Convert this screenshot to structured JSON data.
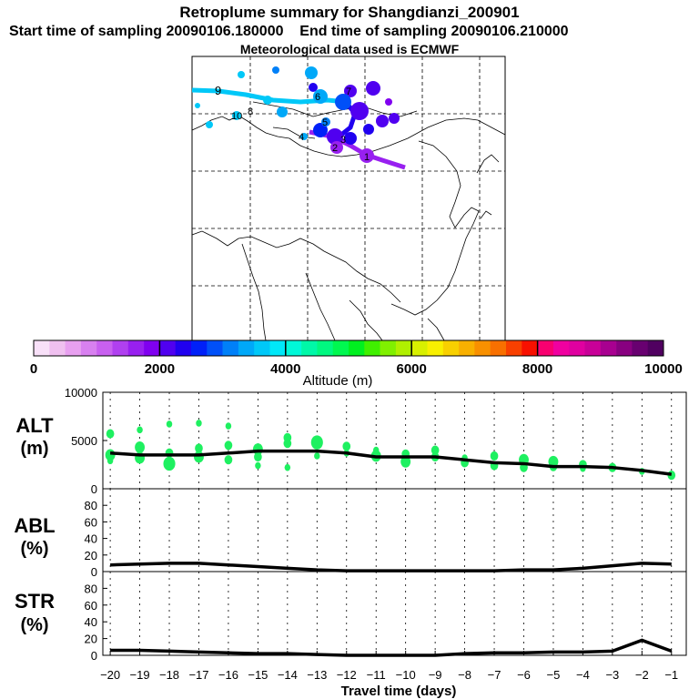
{
  "header": {
    "title": "Retroplume summary for Shangdianzi_200901",
    "start_label": "Start time of sampling 20090106.180000",
    "end_label": "End time of sampling 20090106.210000",
    "met_label": "Meteorological data used is ECMWF"
  },
  "colorbar": {
    "label": "Altitude (m)",
    "tick_labels": [
      "0",
      "2000",
      "4000",
      "6000",
      "8000",
      "10000"
    ],
    "min": 0,
    "max": 10000,
    "colors": [
      "#f8e0f8",
      "#f0c0f0",
      "#e8a0f0",
      "#d880f0",
      "#c860f0",
      "#b040f0",
      "#9820f0",
      "#8000f0",
      "#5000f0",
      "#2000f0",
      "#0020f8",
      "#0050f8",
      "#0080f8",
      "#00a8f8",
      "#00c8f8",
      "#00e8f8",
      "#00f8d8",
      "#00f8a8",
      "#00f880",
      "#00f850",
      "#00f020",
      "#40f000",
      "#80f000",
      "#b0f000",
      "#d8f000",
      "#f8f000",
      "#f8d000",
      "#f8b000",
      "#f89000",
      "#f87000",
      "#f84000",
      "#f81000",
      "#f80070",
      "#f000a0",
      "#e000a0",
      "#c80098",
      "#a80090",
      "#880080",
      "#680070",
      "#500060"
    ],
    "class_bounds": [
      2000,
      4000,
      6000,
      8000
    ]
  },
  "map": {
    "plume_points": [
      {
        "label": "1",
        "altitude": 1800
      },
      {
        "label": "2",
        "altitude": 2000
      },
      {
        "label": "3",
        "altitude": 1800
      },
      {
        "label": "4",
        "altitude": 2200
      },
      {
        "label": "5",
        "altitude": 2400
      },
      {
        "label": "6",
        "altitude": 2600
      },
      {
        "label": "7",
        "altitude": 3000
      },
      {
        "label": "8",
        "altitude": 3200
      },
      {
        "label": "9",
        "altitude": 3600
      },
      {
        "label": "10",
        "altitude": 3400
      }
    ]
  },
  "panels": {
    "alt_label": "ALT",
    "alt_unit": "(m)",
    "abl_label": "ABL",
    "abl_unit": "(%)",
    "str_label": "STR",
    "str_unit": "(%)",
    "xlabel": "Travel time (days)"
  },
  "chart_data": [
    {
      "type": "line",
      "name": "ALT",
      "x": [
        -20,
        -19,
        -18,
        -17,
        -16,
        -15,
        -14,
        -13,
        -12,
        -11,
        -10,
        -9,
        -8,
        -7,
        -6,
        -5,
        -4,
        -3,
        -2,
        -1
      ],
      "series": [
        {
          "name": "median altitude",
          "values": [
            3700,
            3500,
            3500,
            3500,
            3700,
            3900,
            3900,
            3900,
            3700,
            3300,
            3300,
            3300,
            3000,
            2700,
            2600,
            2300,
            2300,
            2200,
            1900,
            1500
          ]
        }
      ],
      "scatter": {
        "x": [
          -20,
          -20,
          -20,
          -19,
          -19,
          -19,
          -18,
          -18,
          -18,
          -17,
          -17,
          -17,
          -16,
          -16,
          -16,
          -15,
          -15,
          -15,
          -14,
          -14,
          -14,
          -13,
          -13,
          -12,
          -12,
          -11,
          -11,
          -10,
          -10,
          -9,
          -9,
          -8,
          -8,
          -7,
          -7,
          -6,
          -6,
          -5,
          -5,
          -4,
          -4,
          -3,
          -2,
          -1
        ],
        "y": [
          3500,
          5700,
          2900,
          4300,
          3200,
          6100,
          3700,
          2600,
          6700,
          3300,
          6800,
          4200,
          3000,
          4500,
          6500,
          4100,
          3300,
          2400,
          4700,
          5300,
          2200,
          4800,
          3400,
          4400,
          3700,
          3400,
          4000,
          2800,
          3600,
          3300,
          4000,
          2700,
          3200,
          3400,
          2400,
          3000,
          2200,
          2800,
          2300,
          2500,
          2100,
          2200,
          1800,
          1400
        ],
        "size": [
          4,
          3,
          2,
          4,
          4,
          2,
          3,
          5,
          2,
          4,
          2,
          3,
          3,
          3,
          2,
          4,
          3,
          2,
          3,
          3,
          2,
          5,
          2,
          3,
          2,
          4,
          2,
          4,
          3,
          3,
          3,
          3,
          2,
          3,
          3,
          4,
          3,
          4,
          3,
          3,
          2,
          3,
          2,
          3
        ]
      },
      "xlim": [
        -20.25,
        -0.5
      ],
      "ylim": [
        0,
        10000
      ],
      "yticks": [
        0,
        5000,
        10000
      ],
      "ytick_labels": [
        "0",
        "5000",
        "10000"
      ],
      "grid": true
    },
    {
      "type": "line",
      "name": "ABL",
      "x": [
        -20,
        -19,
        -18,
        -17,
        -16,
        -15,
        -14,
        -13,
        -12,
        -11,
        -10,
        -9,
        -8,
        -7,
        -6,
        -5,
        -4,
        -3,
        -2,
        -1
      ],
      "series": [
        {
          "name": "ABL fraction",
          "values": [
            8,
            9,
            10,
            10,
            8,
            6,
            4,
            2,
            1,
            1,
            1,
            1,
            1,
            1,
            2,
            2,
            4,
            7,
            10,
            9
          ]
        }
      ],
      "xlim": [
        -20.25,
        -0.5
      ],
      "ylim": [
        0,
        100
      ],
      "yticks": [
        0,
        20,
        40,
        60,
        80
      ],
      "ytick_labels": [
        "0",
        "20",
        "40",
        "60",
        "80"
      ],
      "grid": true
    },
    {
      "type": "line",
      "name": "STR",
      "x": [
        -20,
        -19,
        -18,
        -17,
        -16,
        -15,
        -14,
        -13,
        -12,
        -11,
        -10,
        -9,
        -8,
        -7,
        -6,
        -5,
        -4,
        -3,
        -2,
        -1
      ],
      "series": [
        {
          "name": "STR fraction",
          "values": [
            6,
            6,
            5,
            4,
            3,
            2,
            2,
            1,
            0,
            0,
            0,
            0,
            2,
            3,
            3,
            4,
            4,
            5,
            18,
            5
          ]
        }
      ],
      "xlim": [
        -20.25,
        -0.5
      ],
      "ylim": [
        0,
        100
      ],
      "yticks": [
        0,
        20,
        40,
        60,
        80
      ],
      "ytick_labels": [
        "0",
        "20",
        "40",
        "60",
        "80"
      ],
      "xticks": [
        -20,
        -19,
        -18,
        -17,
        -16,
        -15,
        -14,
        -13,
        -12,
        -11,
        -10,
        -9,
        -8,
        -7,
        -6,
        -5,
        -4,
        -3,
        -2,
        -1
      ],
      "xtick_labels": [
        "−20",
        "−19",
        "−18",
        "−17",
        "−16",
        "−15",
        "−14",
        "−13",
        "−12",
        "−11",
        "−10",
        "−9",
        "−8",
        "−7",
        "−6",
        "−5",
        "−4",
        "−3",
        "−2",
        "−1"
      ],
      "grid": true
    }
  ]
}
